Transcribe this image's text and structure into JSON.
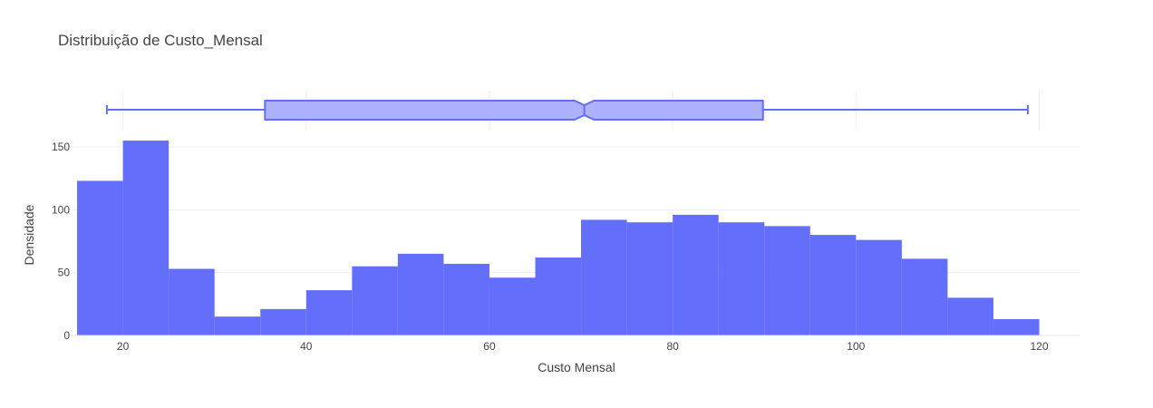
{
  "chart_data": {
    "type": "bar",
    "title": "Distribuição de Custo_Mensal",
    "xlabel": "Custo Mensal",
    "ylabel": "Densidade",
    "bin_width": 5,
    "bins": [
      {
        "x0": 15,
        "x1": 20,
        "value": 123
      },
      {
        "x0": 20,
        "x1": 25,
        "value": 155
      },
      {
        "x0": 25,
        "x1": 30,
        "value": 53
      },
      {
        "x0": 30,
        "x1": 35,
        "value": 15
      },
      {
        "x0": 35,
        "x1": 40,
        "value": 21
      },
      {
        "x0": 40,
        "x1": 45,
        "value": 36
      },
      {
        "x0": 45,
        "x1": 50,
        "value": 55
      },
      {
        "x0": 50,
        "x1": 55,
        "value": 65
      },
      {
        "x0": 55,
        "x1": 60,
        "value": 57
      },
      {
        "x0": 60,
        "x1": 65,
        "value": 46
      },
      {
        "x0": 65,
        "x1": 70,
        "value": 62
      },
      {
        "x0": 70,
        "x1": 75,
        "value": 92
      },
      {
        "x0": 75,
        "x1": 80,
        "value": 90
      },
      {
        "x0": 80,
        "x1": 85,
        "value": 96
      },
      {
        "x0": 85,
        "x1": 90,
        "value": 90
      },
      {
        "x0": 90,
        "x1": 95,
        "value": 87
      },
      {
        "x0": 95,
        "x1": 100,
        "value": 80
      },
      {
        "x0": 100,
        "x1": 105,
        "value": 76
      },
      {
        "x0": 105,
        "x1": 110,
        "value": 61
      },
      {
        "x0": 110,
        "x1": 115,
        "value": 30
      },
      {
        "x0": 115,
        "x1": 120,
        "value": 13
      }
    ],
    "x_ticks": [
      20,
      40,
      60,
      80,
      100,
      120
    ],
    "y_ticks": [
      0,
      50,
      100,
      150
    ],
    "xlim": [
      14.5,
      124.5
    ],
    "ylim": [
      0,
      163
    ],
    "boxplot": {
      "min": 18.25,
      "q1": 35.5,
      "median": 70.35,
      "q3": 89.85,
      "max": 118.75,
      "notched": true,
      "notch_low": 69.3,
      "notch_high": 71.4
    },
    "grid": true,
    "colors": {
      "bar": "#636efa",
      "box_fill": "#aeb2fd",
      "box_line": "#636efa",
      "grid": "#eeeeee",
      "text": "#444444"
    }
  }
}
